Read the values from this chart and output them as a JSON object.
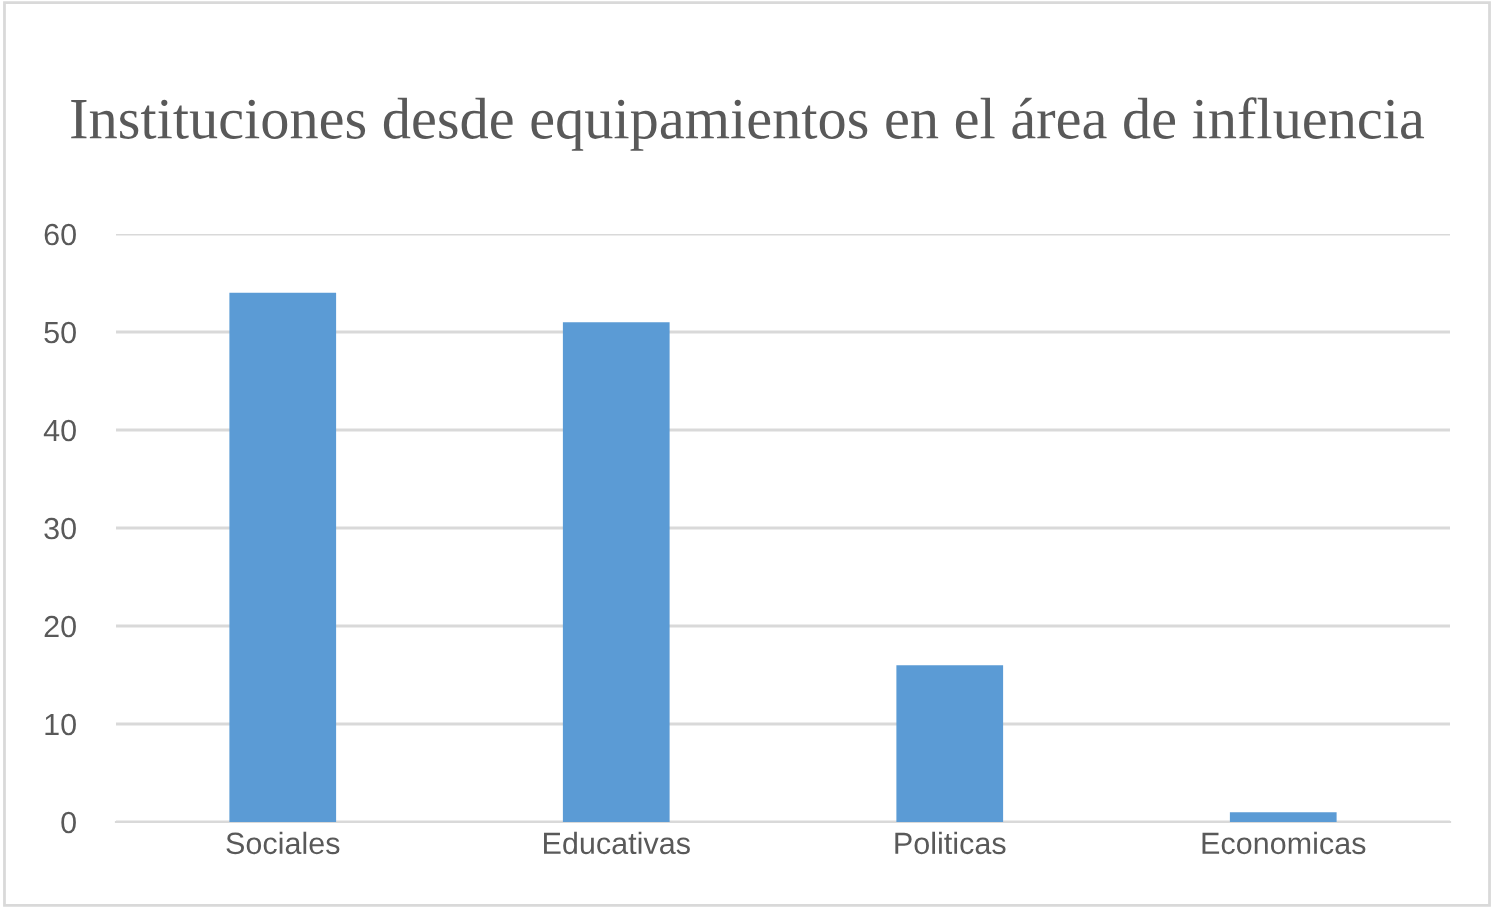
{
  "chart_data": {
    "type": "bar",
    "title": "Instituciones desde equipamientos en el área de influencia",
    "categories": [
      "Sociales",
      "Educativas",
      "Politicas",
      "Economicas"
    ],
    "values": [
      54,
      51,
      16,
      1
    ],
    "color": "#5b9bd5",
    "ylim": [
      0,
      60
    ],
    "yticks": [
      0,
      10,
      20,
      30,
      40,
      50,
      60
    ],
    "grid": "y",
    "legend": false
  }
}
